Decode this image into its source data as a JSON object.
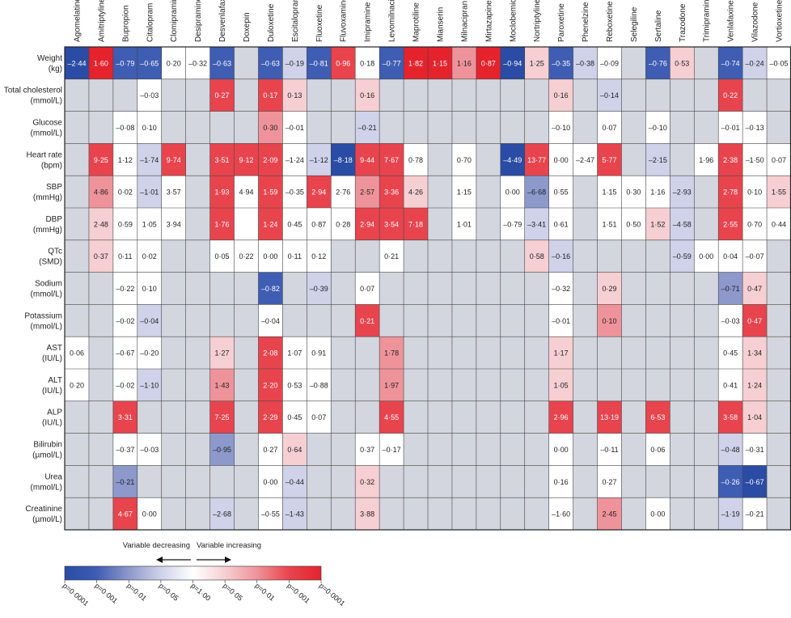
{
  "columns": [
    "Agomelatine",
    "Amitriptyline",
    "Bupropion",
    "Citalopram",
    "Clomipramine",
    "Desipramine",
    "Desvenlafaxine",
    "Doxepin",
    "Duloxetine",
    "Escitalopram",
    "Fluoxetine",
    "Fluvoxamine",
    "Imipramine",
    "Levomilnacipran",
    "Maprotiline",
    "Mianserin",
    "Milnacipran",
    "Mirtazapine",
    "Moclobemide",
    "Nortriptyline",
    "Paroxetine",
    "Phenelzine",
    "Reboxetine",
    "Selegiline",
    "Sertaline",
    "Trazodone",
    "Trimipramine",
    "Venlafaxine",
    "Vilazodone",
    "Vortioxetine"
  ],
  "palette": {
    "D": "#2a4ca5",
    "B": "#3e5db3",
    "M": "#8d98cb",
    "L": "#cfd2e9",
    "W": "#ffffff",
    "P": "#f6cfd2",
    "K": "#ef939a",
    "R": "#e8444e",
    "X": "#e4232d",
    "gray": "#d3d6de"
  },
  "rows": [
    {
      "label": [
        "Weight",
        "(kg)"
      ],
      "cells": {
        "0": [
          "–2·44",
          "D"
        ],
        "1": [
          "1·60",
          "X"
        ],
        "2": [
          "–0·79",
          "B"
        ],
        "3": [
          "–0·65",
          "B"
        ],
        "4": [
          "0·20",
          "W"
        ],
        "5": [
          "–0·32",
          "W"
        ],
        "6": [
          "–0·63",
          "B"
        ],
        "8": [
          "–0·63",
          "B"
        ],
        "9": [
          "–0·19",
          "L"
        ],
        "10": [
          "–0·81",
          "B"
        ],
        "11": [
          "0·96",
          "R"
        ],
        "12": [
          "0·18",
          "W"
        ],
        "13": [
          "–0·77",
          "B"
        ],
        "14": [
          "1·82",
          "X"
        ],
        "15": [
          "1·15",
          "X"
        ],
        "16": [
          "1·16",
          "K"
        ],
        "17": [
          "0·87",
          "X"
        ],
        "18": [
          "–0·94",
          "D"
        ],
        "19": [
          "1·25",
          "P"
        ],
        "20": [
          "–0·35",
          "B"
        ],
        "21": [
          "–0·38",
          "L"
        ],
        "22": [
          "–0·09",
          "W"
        ],
        "24": [
          "–0·76",
          "B"
        ],
        "25": [
          "0·53",
          "P"
        ],
        "27": [
          "–0·74",
          "B"
        ],
        "28": [
          "–0·24",
          "L"
        ],
        "29": [
          "–0·05",
          "W"
        ]
      }
    },
    {
      "label": [
        "Total cholesterol",
        "(mmol/L)"
      ],
      "cells": {
        "3": [
          "–0·03",
          "W"
        ],
        "6": [
          "0·27",
          "R"
        ],
        "8": [
          "0·17",
          "R"
        ],
        "9": [
          "0·13",
          "P"
        ],
        "12": [
          "0·16",
          "P"
        ],
        "20": [
          "0·16",
          "P"
        ],
        "22": [
          "–0·14",
          "L"
        ],
        "27": [
          "0·22",
          "R"
        ]
      }
    },
    {
      "label": [
        "Glucose",
        "(mmol/L)"
      ],
      "cells": {
        "2": [
          "–0·08",
          "W"
        ],
        "3": [
          "0·10",
          "W"
        ],
        "8": [
          "0·30",
          "K"
        ],
        "9": [
          "–0·01",
          "W"
        ],
        "12": [
          "–0·21",
          "L"
        ],
        "20": [
          "–0·10",
          "W"
        ],
        "22": [
          "0·07",
          "W"
        ],
        "24": [
          "–0·10",
          "W"
        ],
        "27": [
          "–0·01",
          "W"
        ],
        "28": [
          "–0·13",
          "W"
        ]
      }
    },
    {
      "label": [
        "Heart rate",
        "(bpm)"
      ],
      "cells": {
        "1": [
          "9·25",
          "R"
        ],
        "2": [
          "1·12",
          "W"
        ],
        "3": [
          "–1·74",
          "L"
        ],
        "4": [
          "9·74",
          "R"
        ],
        "6": [
          "3·51",
          "R"
        ],
        "7": [
          "9·12",
          "R"
        ],
        "8": [
          "2·09",
          "R"
        ],
        "9": [
          "–1·24",
          "W"
        ],
        "10": [
          "–1·12",
          "L"
        ],
        "11": [
          "–8·18",
          "D"
        ],
        "12": [
          "9·44",
          "R"
        ],
        "13": [
          "7·67",
          "R"
        ],
        "14": [
          "0·78",
          "W"
        ],
        "16": [
          "0·70",
          "W"
        ],
        "18": [
          "–4·49",
          "D"
        ],
        "19": [
          "13·77",
          "R"
        ],
        "20": [
          "0·00",
          "W"
        ],
        "21": [
          "–2·47",
          "W"
        ],
        "22": [
          "5·77",
          "R"
        ],
        "24": [
          "–2·15",
          "L"
        ],
        "26": [
          "1·96",
          "W"
        ],
        "27": [
          "2·38",
          "R"
        ],
        "28": [
          "–1·50",
          "W"
        ],
        "29": [
          "0·07",
          "W"
        ]
      }
    },
    {
      "label": [
        "SBP",
        "(mmHg)"
      ],
      "cells": {
        "1": [
          "4·86",
          "K"
        ],
        "2": [
          "0·02",
          "W"
        ],
        "3": [
          "–1·01",
          "L"
        ],
        "4": [
          "3·57",
          "W"
        ],
        "6": [
          "1·93",
          "R"
        ],
        "7": [
          "4·94",
          "W"
        ],
        "8": [
          "1·59",
          "R"
        ],
        "9": [
          "–0·35",
          "W"
        ],
        "10": [
          "2·94",
          "R"
        ],
        "11": [
          "2·76",
          "W"
        ],
        "12": [
          "2·57",
          "K"
        ],
        "13": [
          "3·36",
          "R"
        ],
        "14": [
          "4·26",
          "P"
        ],
        "16": [
          "1·15",
          "W"
        ],
        "18": [
          "0·00",
          "W"
        ],
        "19": [
          "–6·68",
          "M"
        ],
        "20": [
          "0·55",
          "W"
        ],
        "22": [
          "1·15",
          "W"
        ],
        "23": [
          "0·30",
          "W"
        ],
        "24": [
          "1·16",
          "W"
        ],
        "25": [
          "–2·93",
          "L"
        ],
        "27": [
          "2·78",
          "R"
        ],
        "28": [
          "0·10",
          "W"
        ],
        "29": [
          "1·55",
          "P"
        ]
      }
    },
    {
      "label": [
        "DBP",
        "(mmHg)"
      ],
      "cells": {
        "1": [
          "2·48",
          "P"
        ],
        "2": [
          "0·59",
          "W"
        ],
        "3": [
          "1·05",
          "W"
        ],
        "4": [
          "3·94",
          "W"
        ],
        "6": [
          "1·76",
          "R"
        ],
        "7": [
          null,
          "W"
        ],
        "8": [
          "1·24",
          "R"
        ],
        "9": [
          "0·45",
          "W"
        ],
        "10": [
          "0·87",
          "W"
        ],
        "11": [
          "0·28",
          "W"
        ],
        "12": [
          "2·94",
          "R"
        ],
        "13": [
          "3·54",
          "R"
        ],
        "14": [
          "7·18",
          "R"
        ],
        "16": [
          "1·01",
          "W"
        ],
        "18": [
          "–0·79",
          "W"
        ],
        "19": [
          "–3·41",
          "L"
        ],
        "20": [
          "0·61",
          "W"
        ],
        "22": [
          "1·51",
          "W"
        ],
        "23": [
          "0·50",
          "W"
        ],
        "24": [
          "1·52",
          "P"
        ],
        "25": [
          "–4·58",
          "L"
        ],
        "27": [
          "2·55",
          "R"
        ],
        "28": [
          "0·70",
          "W"
        ],
        "29": [
          "0·44",
          "W"
        ]
      }
    },
    {
      "label": [
        "QTc",
        "(SMD)"
      ],
      "cells": {
        "1": [
          "0·37",
          "P"
        ],
        "2": [
          "0·11",
          "W"
        ],
        "3": [
          "0·02",
          "W"
        ],
        "6": [
          "0·05",
          "W"
        ],
        "7": [
          "0·22",
          "W"
        ],
        "8": [
          "0·00",
          "W"
        ],
        "9": [
          "0·11",
          "W"
        ],
        "10": [
          "0·12",
          "W"
        ],
        "13": [
          "0·21",
          "W"
        ],
        "19": [
          "0·58",
          "P"
        ],
        "20": [
          "–0·16",
          "L"
        ],
        "25": [
          "–0·59",
          "L"
        ],
        "26": [
          "0·00",
          "W"
        ],
        "27": [
          "0·04",
          "W"
        ],
        "28": [
          "–0·07",
          "W"
        ]
      }
    },
    {
      "label": [
        "Sodium",
        "(mmol/L)"
      ],
      "cells": {
        "2": [
          "–0·22",
          "W"
        ],
        "3": [
          "0·10",
          "W"
        ],
        "8": [
          "–0·82",
          "B"
        ],
        "10": [
          "–0·39",
          "L"
        ],
        "12": [
          "0·07",
          "W"
        ],
        "20": [
          "–0·32",
          "W"
        ],
        "22": [
          "0·29",
          "P"
        ],
        "27": [
          "–0·71",
          "M"
        ],
        "28": [
          "0·47",
          "P"
        ]
      }
    },
    {
      "label": [
        "Potassium",
        "(mmol/L)"
      ],
      "cells": {
        "2": [
          "–0·02",
          "W"
        ],
        "3": [
          "–0·04",
          "L"
        ],
        "8": [
          "–0·04",
          "W"
        ],
        "12": [
          "0·21",
          "R"
        ],
        "20": [
          "–0·01",
          "W"
        ],
        "22": [
          "0·10",
          "K"
        ],
        "27": [
          "–0·03",
          "W"
        ],
        "28": [
          "0·47",
          "R"
        ]
      }
    },
    {
      "label": [
        "AST",
        "(IU/L)"
      ],
      "cells": {
        "0": [
          "0·06",
          "W"
        ],
        "2": [
          "–0·67",
          "W"
        ],
        "3": [
          "–0·20",
          "W"
        ],
        "6": [
          "1·27",
          "P"
        ],
        "8": [
          "2·08",
          "R"
        ],
        "9": [
          "1·07",
          "W"
        ],
        "10": [
          "0·91",
          "W"
        ],
        "13": [
          "1·78",
          "K"
        ],
        "20": [
          "1·17",
          "P"
        ],
        "27": [
          "0·45",
          "W"
        ],
        "28": [
          "1·34",
          "P"
        ]
      }
    },
    {
      "label": [
        "ALT",
        "(IU/L)"
      ],
      "cells": {
        "0": [
          "0·20",
          "W"
        ],
        "2": [
          "–0·02",
          "W"
        ],
        "3": [
          "–1·10",
          "L"
        ],
        "6": [
          "1·43",
          "K"
        ],
        "8": [
          "2·20",
          "R"
        ],
        "9": [
          "0·53",
          "W"
        ],
        "10": [
          "–0·88",
          "W"
        ],
        "13": [
          "1·97",
          "K"
        ],
        "20": [
          "1·05",
          "P"
        ],
        "27": [
          "0·41",
          "W"
        ],
        "28": [
          "1·24",
          "P"
        ]
      }
    },
    {
      "label": [
        "ALP",
        "(IU/L)"
      ],
      "cells": {
        "2": [
          "3·31",
          "R"
        ],
        "6": [
          "7·25",
          "R"
        ],
        "8": [
          "2·29",
          "R"
        ],
        "9": [
          "0·45",
          "W"
        ],
        "10": [
          "0·07",
          "W"
        ],
        "13": [
          "4·55",
          "R"
        ],
        "20": [
          "2·96",
          "R"
        ],
        "22": [
          "13·19",
          "R"
        ],
        "24": [
          "6·53",
          "R"
        ],
        "27": [
          "3·58",
          "R"
        ],
        "28": [
          "1·04",
          "P"
        ]
      }
    },
    {
      "label": [
        "Bilirubin",
        "(µmol/L)"
      ],
      "cells": {
        "2": [
          "–0·37",
          "W"
        ],
        "3": [
          "–0·03",
          "W"
        ],
        "6": [
          "–0·95",
          "M"
        ],
        "8": [
          "0·27",
          "W"
        ],
        "9": [
          "0·64",
          "P"
        ],
        "12": [
          "0·37",
          "W"
        ],
        "13": [
          "–0·17",
          "W"
        ],
        "20": [
          "0·00",
          "W"
        ],
        "22": [
          "–0·11",
          "W"
        ],
        "24": [
          "0·06",
          "W"
        ],
        "27": [
          "–0·48",
          "L"
        ],
        "28": [
          "–0·31",
          "W"
        ]
      }
    },
    {
      "label": [
        "Urea",
        "(mmol/L)"
      ],
      "cells": {
        "2": [
          "–0·21",
          "M"
        ],
        "8": [
          "0·00",
          "W"
        ],
        "9": [
          "–0·44",
          "L"
        ],
        "12": [
          "0·32",
          "P"
        ],
        "20": [
          "0·16",
          "W"
        ],
        "22": [
          "0·27",
          "W"
        ],
        "27": [
          "–0·26",
          "B"
        ],
        "28": [
          "–0·67",
          "D"
        ]
      }
    },
    {
      "label": [
        "Creatinine",
        "(µmol/L)"
      ],
      "cells": {
        "2": [
          "4·67",
          "R"
        ],
        "3": [
          "0·00",
          "W"
        ],
        "6": [
          "–2·68",
          "L"
        ],
        "8": [
          "–0·55",
          "W"
        ],
        "9": [
          "–1·43",
          "L"
        ],
        "12": [
          "3·88",
          "P"
        ],
        "20": [
          "–1·60",
          "W"
        ],
        "22": [
          "2·45",
          "K"
        ],
        "24": [
          "0·00",
          "W"
        ],
        "27": [
          "–1·19",
          "L"
        ],
        "28": [
          "–0·21",
          "W"
        ]
      }
    }
  ],
  "legend": {
    "decreasing": "Variable decreasing",
    "increasing": "Variable increasing",
    "scale": [
      "p=0·0001",
      "p=0·001",
      "p=0·01",
      "p=0·05",
      "p=1·00",
      "p=0·05",
      "p=0·01",
      "p=0·001",
      "p=0·0001"
    ],
    "scale_colors": [
      "D",
      "B",
      "M",
      "L",
      "W",
      "P",
      "K",
      "R",
      "X"
    ]
  }
}
